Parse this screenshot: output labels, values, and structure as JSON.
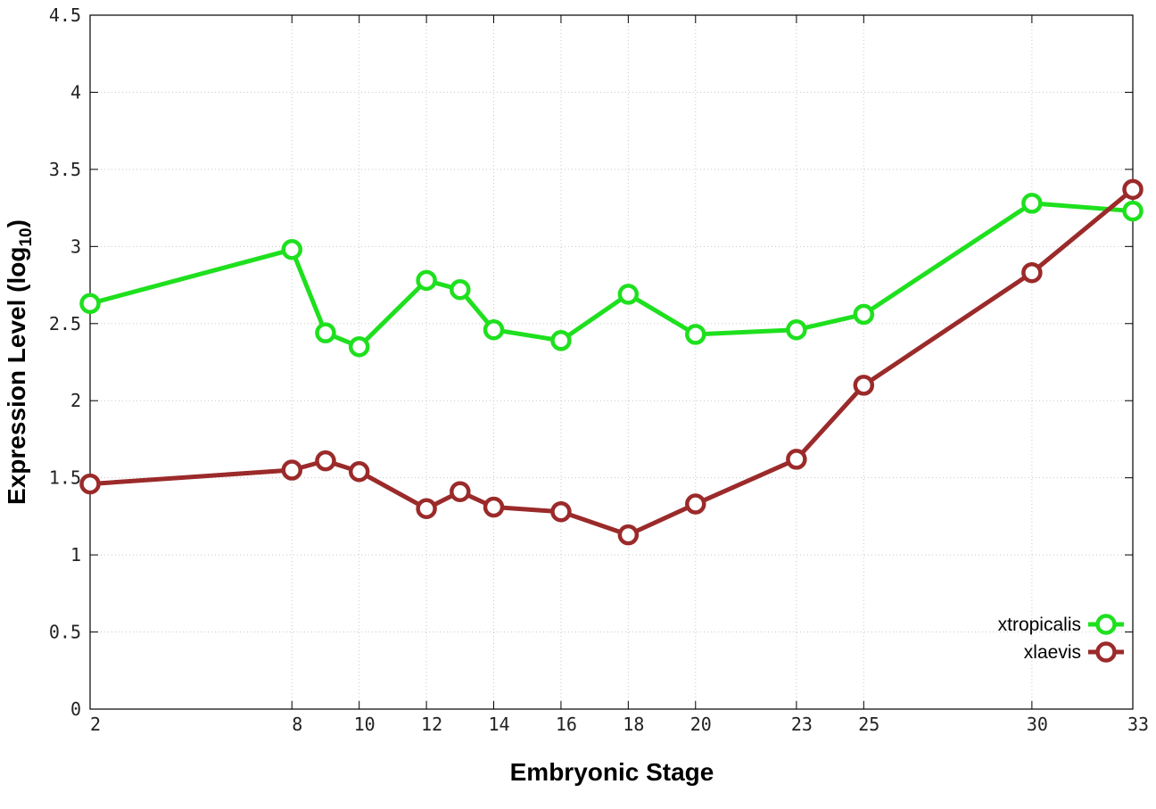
{
  "chart_data": {
    "type": "line",
    "xlabel": "Embryonic Stage",
    "ylabel": "Expression Level (log",
    "ylabel_sub": "10",
    "ylabel_close": ")",
    "x": [
      2,
      8,
      9,
      10,
      12,
      13,
      14,
      16,
      18,
      20,
      23,
      25,
      30,
      33
    ],
    "x_tick_labels": [
      "2",
      "8",
      "10",
      "12",
      "14",
      "16",
      "18",
      "20",
      "23",
      "25",
      "30",
      "33"
    ],
    "y_tick_labels": [
      "0",
      "0.5",
      "1",
      "1.5",
      "2",
      "2.5",
      "3",
      "3.5",
      "4",
      "4.5"
    ],
    "xlim": [
      2,
      33
    ],
    "ylim": [
      0,
      4.5
    ],
    "grid": true,
    "legend_position": "bottom-right",
    "series": [
      {
        "name": "xtropicalis",
        "color": "#1ee01e",
        "values": [
          2.63,
          2.98,
          2.44,
          2.35,
          2.78,
          2.72,
          2.46,
          2.39,
          2.69,
          2.43,
          2.46,
          2.56,
          3.28,
          3.23
        ]
      },
      {
        "name": "xlaevis",
        "color": "#9b2a2a",
        "values": [
          1.46,
          1.55,
          1.61,
          1.54,
          1.3,
          1.41,
          1.31,
          1.28,
          1.13,
          1.33,
          1.62,
          2.1,
          2.83,
          3.37
        ]
      }
    ]
  }
}
